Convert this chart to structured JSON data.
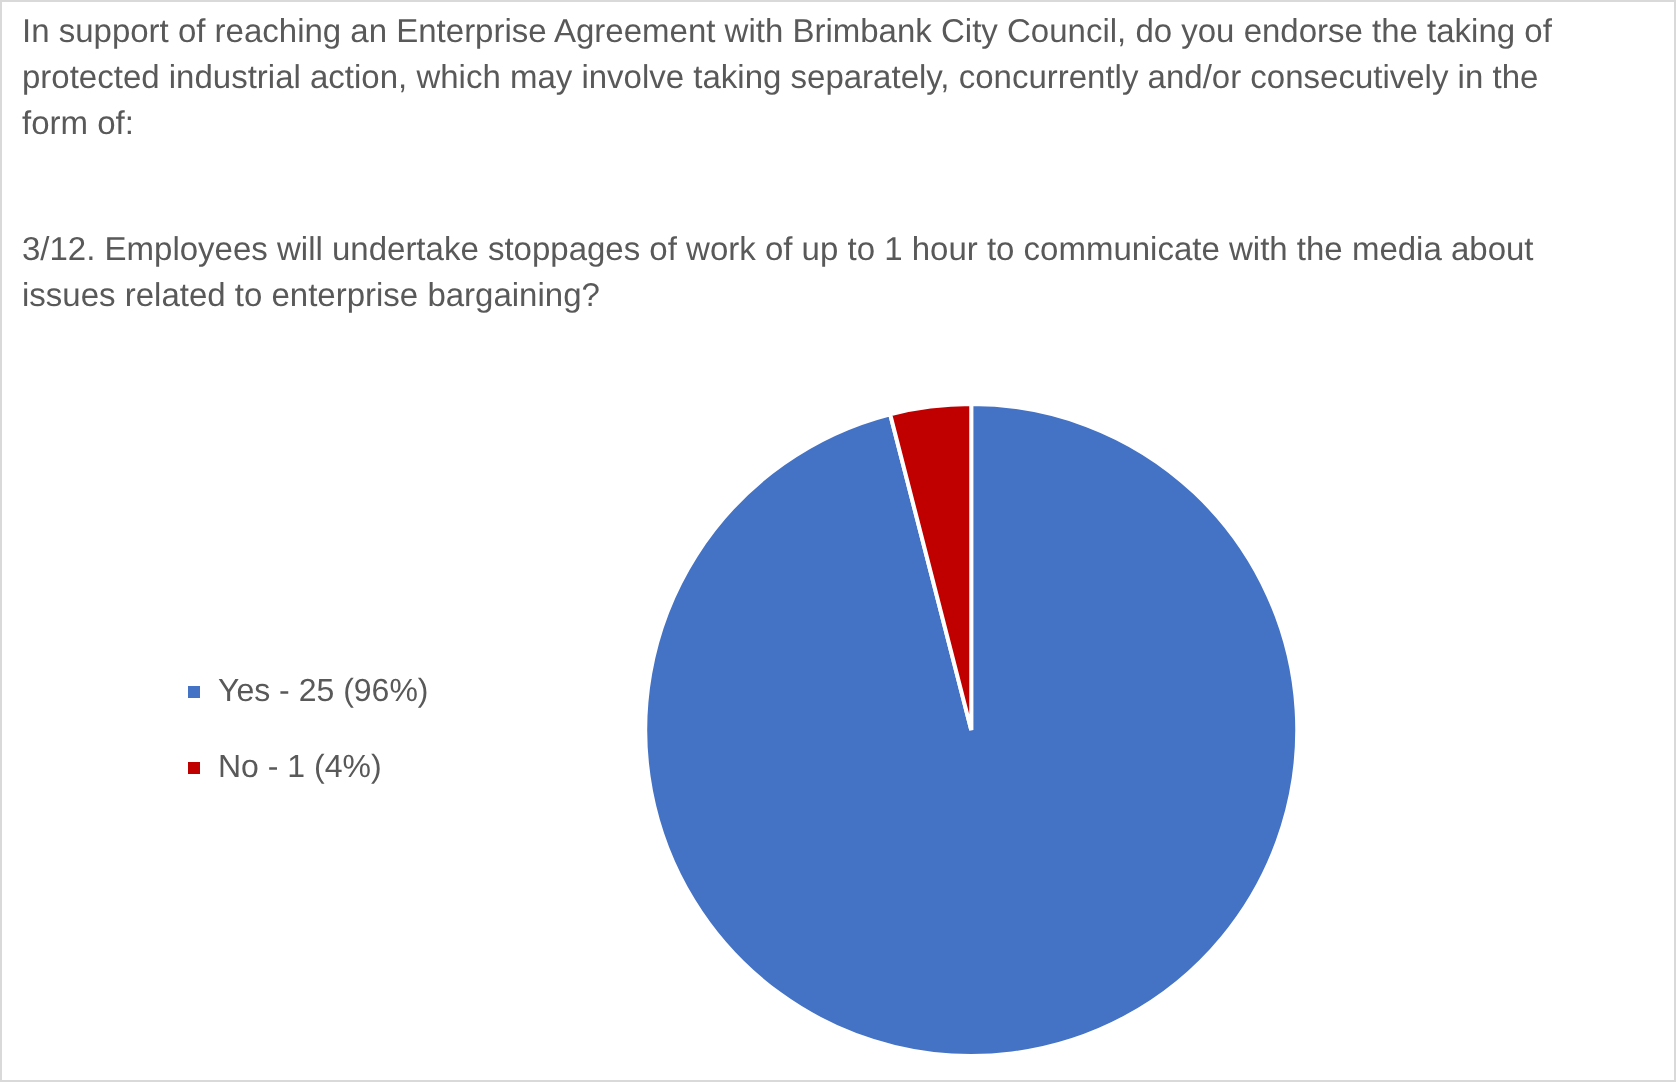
{
  "chart_data": {
    "type": "pie",
    "title": "In support of reaching an Enterprise Agreement with Brimbank City Council, do you endorse the taking of protected industrial action, which may involve taking separately, concurrently and/or consecutively in the form of:",
    "subtitle": "3/12. Employees will undertake stoppages of work of up to 1 hour to communicate with the media about issues related to enterprise bargaining?",
    "categories": [
      "Yes - 25 (96%)",
      "No - 1 (4%)"
    ],
    "values": [
      96,
      4
    ],
    "colors": [
      "#4472c4",
      "#c00000"
    ],
    "legend": "left"
  }
}
